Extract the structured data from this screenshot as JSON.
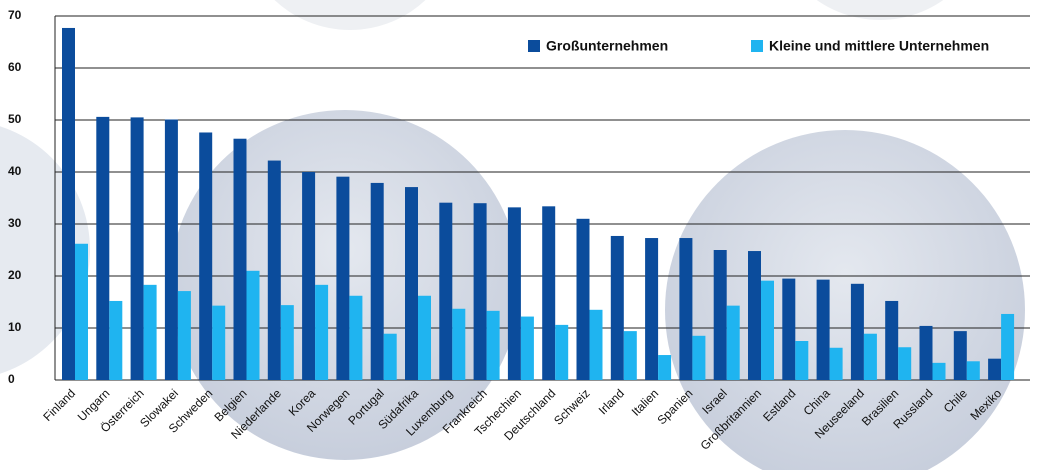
{
  "chart_data": {
    "type": "bar",
    "categories": [
      "Finland",
      "Ungarn",
      "Österreich",
      "Slowakei",
      "Schweden",
      "Belgien",
      "Niederlande",
      "Korea",
      "Norwegen",
      "Portugal",
      "Südafrika",
      "Luxemburg",
      "Frankreich",
      "Tschechien",
      "Deutschland",
      "Schweiz",
      "Irland",
      "Italien",
      "Spanien",
      "Israel",
      "Großbritannien",
      "Estland",
      "China",
      "Neuseeland",
      "Brasilien",
      "Russland",
      "Chile",
      "Mexiko"
    ],
    "series": [
      {
        "name": "Großunternehmen",
        "color": "#0b4c9c",
        "values": [
          67.7,
          50.6,
          50.5,
          50.1,
          47.6,
          46.4,
          42.2,
          40,
          39.1,
          37.9,
          37.1,
          34.1,
          34,
          33.2,
          33.4,
          31,
          27.7,
          27.3,
          27.3,
          25,
          24.8,
          19.5,
          19.3,
          18.5,
          15.2,
          10.4,
          9.4,
          4.1
        ]
      },
      {
        "name": "Kleine und mittlere Unternehmen",
        "color": "#1fb4f0",
        "values": [
          26.2,
          15.2,
          18.3,
          17.1,
          14.3,
          21,
          14.4,
          18.3,
          16.2,
          8.9,
          16.2,
          13.7,
          13.3,
          12.2,
          10.6,
          13.5,
          9.4,
          4.8,
          8.5,
          14.3,
          19.1,
          7.5,
          6.2,
          8.9,
          6.3,
          3.3,
          3.6,
          12.7
        ]
      }
    ],
    "ylim": [
      0,
      70
    ],
    "yticks": [
      0,
      10,
      20,
      30,
      40,
      50,
      60,
      70
    ],
    "grid": true,
    "legend": "top-right"
  }
}
